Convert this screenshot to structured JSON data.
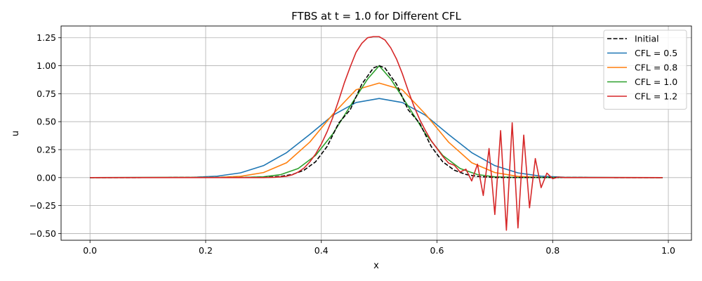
{
  "chart_data": {
    "type": "line",
    "title": "FTBS at t = 1.0 for Different CFL",
    "xlabel": "x",
    "ylabel": "u",
    "xlim": [
      -0.05,
      1.04
    ],
    "ylim": [
      -0.56,
      1.355
    ],
    "xticks": [
      0.0,
      0.2,
      0.4,
      0.6,
      0.8,
      1.0
    ],
    "xtick_labels": [
      "0.0",
      "0.2",
      "0.4",
      "0.6",
      "0.8",
      "1.0"
    ],
    "yticks": [
      -0.5,
      -0.25,
      0.0,
      0.25,
      0.5,
      0.75,
      1.0,
      1.25
    ],
    "ytick_labels": [
      "−0.50",
      "−0.25",
      "0.00",
      "0.25",
      "0.50",
      "0.75",
      "1.00",
      "1.25"
    ],
    "grid": true,
    "legend_position": "top-right",
    "series": [
      {
        "name": "Initial",
        "color": "#000000",
        "dash": "dashed",
        "x": [
          0.0,
          0.3,
          0.33,
          0.35,
          0.37,
          0.39,
          0.41,
          0.43,
          0.45,
          0.47,
          0.49,
          0.5,
          0.51,
          0.53,
          0.55,
          0.57,
          0.59,
          0.61,
          0.63,
          0.65,
          0.67,
          0.7,
          0.99
        ],
        "y": [
          0.0,
          0.001,
          0.011,
          0.028,
          0.066,
          0.141,
          0.278,
          0.487,
          0.607,
          0.835,
          0.98,
          1.0,
          0.98,
          0.835,
          0.607,
          0.487,
          0.278,
          0.141,
          0.066,
          0.028,
          0.011,
          0.001,
          0.0
        ]
      },
      {
        "name": "CFL = 0.5",
        "color": "#1f77b4",
        "dash": "solid",
        "x": [
          0.0,
          0.18,
          0.22,
          0.26,
          0.3,
          0.34,
          0.38,
          0.42,
          0.46,
          0.5,
          0.54,
          0.58,
          0.62,
          0.66,
          0.7,
          0.74,
          0.78,
          0.82,
          0.99
        ],
        "y": [
          0.0,
          0.003,
          0.013,
          0.042,
          0.107,
          0.223,
          0.386,
          0.557,
          0.671,
          0.707,
          0.671,
          0.557,
          0.386,
          0.223,
          0.107,
          0.042,
          0.013,
          0.003,
          0.0
        ]
      },
      {
        "name": "CFL = 0.8",
        "color": "#ff7f0e",
        "dash": "solid",
        "x": [
          0.0,
          0.22,
          0.26,
          0.3,
          0.34,
          0.38,
          0.42,
          0.46,
          0.5,
          0.54,
          0.58,
          0.62,
          0.66,
          0.7,
          0.74,
          0.78,
          0.99
        ],
        "y": [
          0.0,
          0.002,
          0.011,
          0.045,
          0.133,
          0.317,
          0.567,
          0.785,
          0.845,
          0.785,
          0.567,
          0.317,
          0.133,
          0.045,
          0.011,
          0.002,
          0.0
        ]
      },
      {
        "name": "CFL = 1.0",
        "color": "#2ca02c",
        "dash": "solid",
        "x": [
          0.0,
          0.26,
          0.3,
          0.33,
          0.36,
          0.39,
          0.42,
          0.45,
          0.48,
          0.5,
          0.52,
          0.55,
          0.58,
          0.61,
          0.64,
          0.67,
          0.7,
          0.74,
          0.99
        ],
        "y": [
          0.0,
          0.001,
          0.007,
          0.027,
          0.081,
          0.198,
          0.392,
          0.64,
          0.881,
          1.0,
          0.881,
          0.64,
          0.392,
          0.198,
          0.081,
          0.027,
          0.007,
          0.001,
          0.0
        ]
      },
      {
        "name": "CFL = 1.2",
        "color": "#d62728",
        "dash": "solid",
        "x": [
          0.0,
          0.3,
          0.32,
          0.34,
          0.35,
          0.36,
          0.37,
          0.38,
          0.39,
          0.4,
          0.41,
          0.42,
          0.43,
          0.44,
          0.45,
          0.46,
          0.47,
          0.48,
          0.49,
          0.5,
          0.51,
          0.52,
          0.53,
          0.54,
          0.55,
          0.56,
          0.57,
          0.58,
          0.59,
          0.6,
          0.61,
          0.62,
          0.63,
          0.64,
          0.65,
          0.66,
          0.67,
          0.68,
          0.69,
          0.7,
          0.71,
          0.72,
          0.73,
          0.74,
          0.75,
          0.76,
          0.77,
          0.78,
          0.79,
          0.8,
          0.81,
          0.82,
          0.99
        ],
        "y": [
          0.0,
          0.0,
          0.003,
          0.012,
          0.025,
          0.05,
          0.085,
          0.14,
          0.21,
          0.3,
          0.41,
          0.54,
          0.69,
          0.85,
          0.99,
          1.12,
          1.2,
          1.25,
          1.26,
          1.26,
          1.23,
          1.16,
          1.06,
          0.93,
          0.78,
          0.64,
          0.52,
          0.42,
          0.33,
          0.26,
          0.19,
          0.13,
          0.11,
          0.05,
          0.075,
          -0.03,
          0.12,
          -0.16,
          0.26,
          -0.33,
          0.42,
          -0.47,
          0.49,
          -0.45,
          0.38,
          -0.27,
          0.17,
          -0.09,
          0.04,
          -0.01,
          0.005,
          0.0,
          0.0
        ]
      }
    ]
  }
}
